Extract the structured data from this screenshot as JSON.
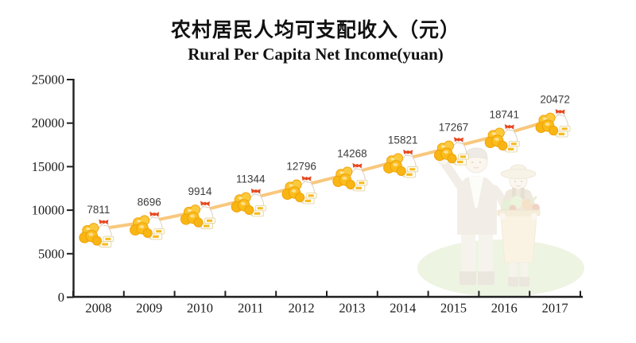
{
  "page": {
    "background_color": "#FFFFFF"
  },
  "chart_data": {
    "type": "line",
    "title": "农村居民人均可支配收入（元）",
    "subtitle": "Rural Per Capita Net Income(yuan)",
    "categories": [
      "2008",
      "2009",
      "2010",
      "2011",
      "2012",
      "2013",
      "2014",
      "2015",
      "2016",
      "2017"
    ],
    "values": [
      7811,
      8696,
      9914,
      11344,
      12796,
      14268,
      15821,
      17267,
      18741,
      20472
    ],
    "xlabel": "",
    "ylabel": "",
    "ylim": [
      0,
      25000
    ],
    "y_tick_step": 5000,
    "y_ticks": [
      "25000",
      "20000",
      "15000",
      "10000",
      "5000",
      "0"
    ],
    "grid": false,
    "legend": "none",
    "line_color": "#F8C87D",
    "axis_color": "#1f1f1f",
    "value_label_color": "#3b3b3b",
    "marker": "money-bag-with-gold-coins-icon",
    "marker_colors": {
      "bag": "#FFFFFF",
      "bow": "#E8471F",
      "coins": "#FBBD1C",
      "coin_edge": "#ED9F03",
      "booklet_stripe": "#F6BB22"
    },
    "background_illustration": "faded farmer couple (man with towel raising hand, woman in straw hat holding vegetable basket) standing on light green ground ellipse"
  }
}
